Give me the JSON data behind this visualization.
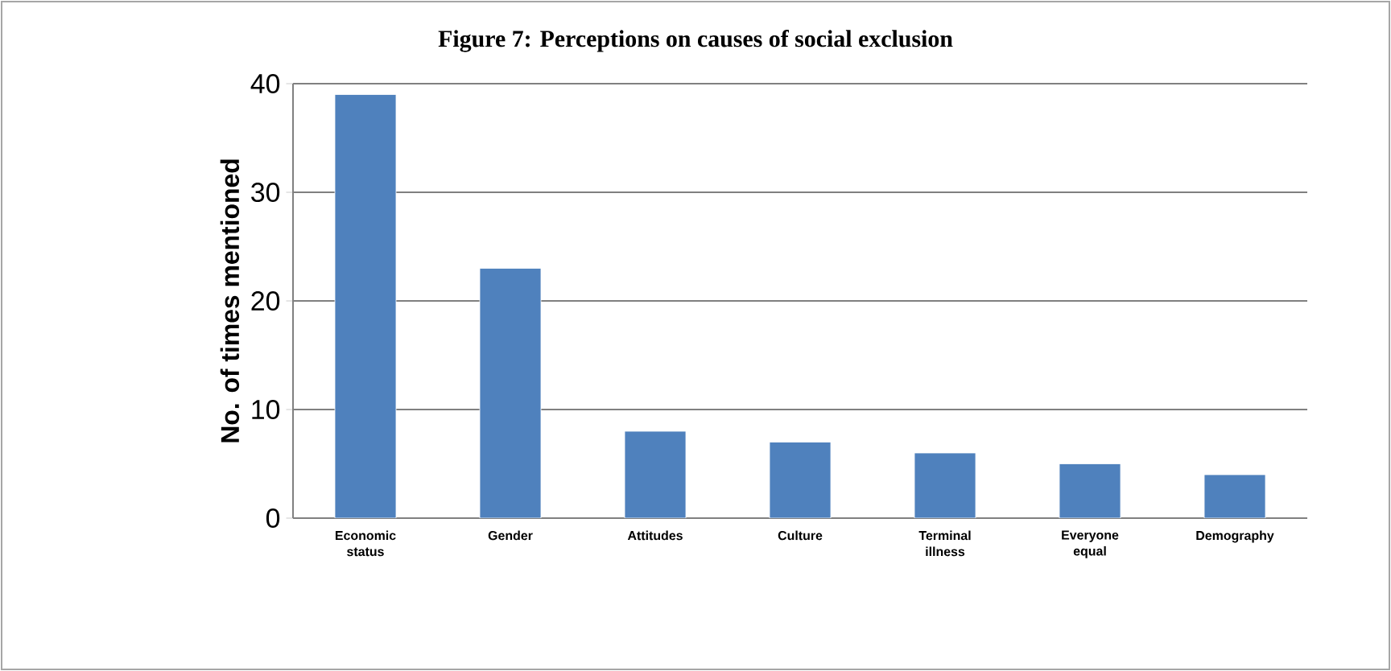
{
  "chart_data": {
    "type": "bar",
    "title": "Figure 7: Perceptions on causes of social exclusion",
    "ylabel": "No. of times mentioned",
    "categories": [
      "Economic status",
      "Gender",
      "Attitudes",
      "Culture",
      "Terminal illness",
      "Everyone equal",
      "Demography"
    ],
    "values": [
      39,
      23,
      8,
      7,
      6,
      5,
      4
    ],
    "color": "#4f81bd",
    "ylim": [
      0,
      40
    ],
    "yticks": [
      0,
      10,
      20,
      30,
      40
    ],
    "grid": "y"
  }
}
